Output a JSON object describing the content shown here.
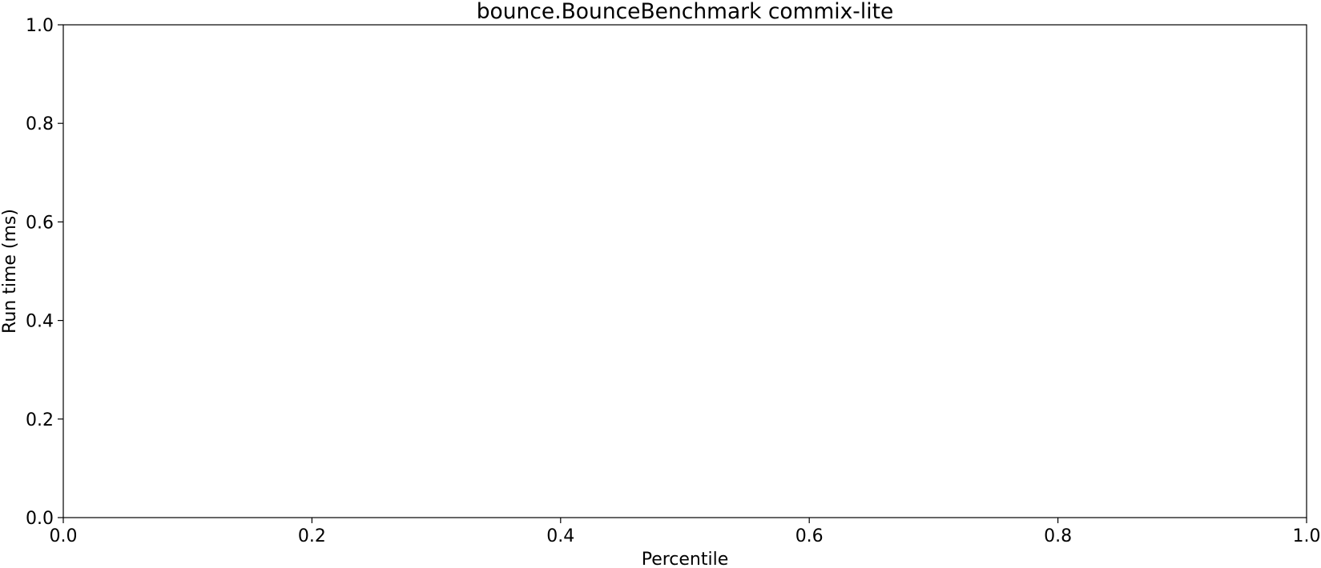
{
  "chart_data": {
    "type": "line",
    "title": "bounce.BounceBenchmark commix-lite",
    "xlabel": "Percentile",
    "ylabel": "Run time (ms)",
    "xlim": [
      0.0,
      1.0
    ],
    "ylim": [
      0.0,
      1.0
    ],
    "xticks": [
      "0.0",
      "0.2",
      "0.4",
      "0.6",
      "0.8",
      "1.0"
    ],
    "yticks": [
      "0.0",
      "0.2",
      "0.4",
      "0.6",
      "0.8",
      "1.0"
    ],
    "series": [],
    "grid": false,
    "legend": "none"
  }
}
